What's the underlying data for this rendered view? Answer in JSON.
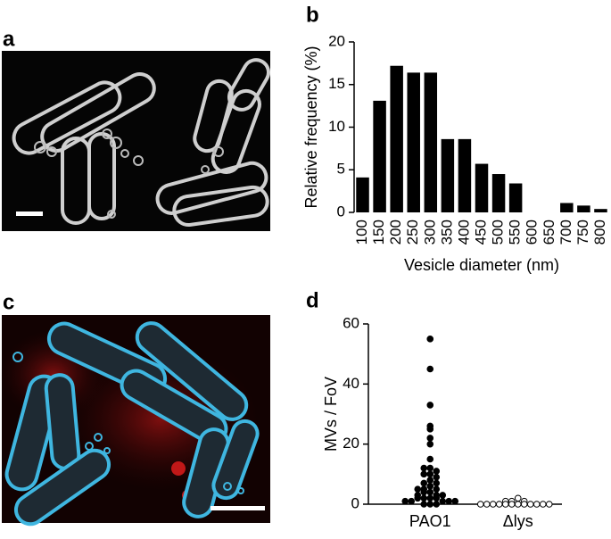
{
  "panels": {
    "a": "a",
    "b": "b",
    "c": "c",
    "d": "d"
  },
  "chart_data": [
    {
      "type": "bar",
      "categories": [
        "100",
        "150",
        "200",
        "250",
        "300",
        "350",
        "400",
        "450",
        "500",
        "550",
        "600",
        "650",
        "700",
        "750",
        "800"
      ],
      "values": [
        4.1,
        13.1,
        17.2,
        16.4,
        16.4,
        8.6,
        8.6,
        5.7,
        4.5,
        3.4,
        0,
        0,
        1.1,
        0.8,
        0.4
      ],
      "color": "#000000",
      "ylim": [
        0,
        20
      ],
      "yticks": [
        0,
        5,
        10,
        15,
        20
      ],
      "y_label": "Relative frequency (%)",
      "x_label": "Vesicle diameter (nm)"
    },
    {
      "type": "strip",
      "categories": [
        "PAO1",
        "Δlys"
      ],
      "values": [
        [
          55,
          45,
          33,
          26,
          25,
          22,
          20,
          15,
          12,
          12,
          11,
          10,
          10,
          9,
          8,
          7,
          7,
          6,
          5,
          5,
          5,
          4,
          4,
          3,
          3,
          3,
          2,
          2,
          2,
          2,
          1,
          1,
          1,
          1,
          1,
          0,
          0,
          0
        ],
        [
          2,
          1,
          1,
          1,
          0,
          0,
          0,
          0,
          0,
          0,
          0,
          0,
          0,
          0,
          0,
          0
        ]
      ],
      "colors": [
        "#000000",
        "#ffffff"
      ],
      "ylim": [
        0,
        60
      ],
      "yticks": [
        0,
        20,
        40,
        60
      ],
      "y_label": "MVs / FoV"
    }
  ]
}
